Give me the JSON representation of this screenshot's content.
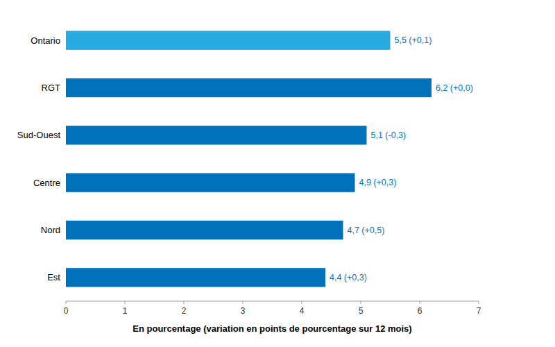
{
  "chart_data": {
    "type": "bar",
    "orientation": "horizontal",
    "categories": [
      "Ontario",
      "RGT",
      "Sud-Ouest",
      "Centre",
      "Nord",
      "Est"
    ],
    "values": [
      5.5,
      6.2,
      5.1,
      4.9,
      4.7,
      4.4
    ],
    "value_labels": [
      "5,5 (+0,1)",
      "6,2 (+0,0)",
      "5,1 (-0,3)",
      "4,9 (+0,3)",
      "4,7 (+0,5)",
      "4,4 (+0,3)"
    ],
    "data_labels": true,
    "colors": [
      "#29ABE2",
      "#0072BC",
      "#0072BC",
      "#0072BC",
      "#0072BC",
      "#0072BC"
    ],
    "xlabel": "En pourcentage (variation en points de pourcentage sur 12 mois)",
    "xlim": [
      0,
      7
    ],
    "xticks": [
      0,
      1,
      2,
      3,
      4,
      5,
      6,
      7
    ],
    "grid": false
  }
}
